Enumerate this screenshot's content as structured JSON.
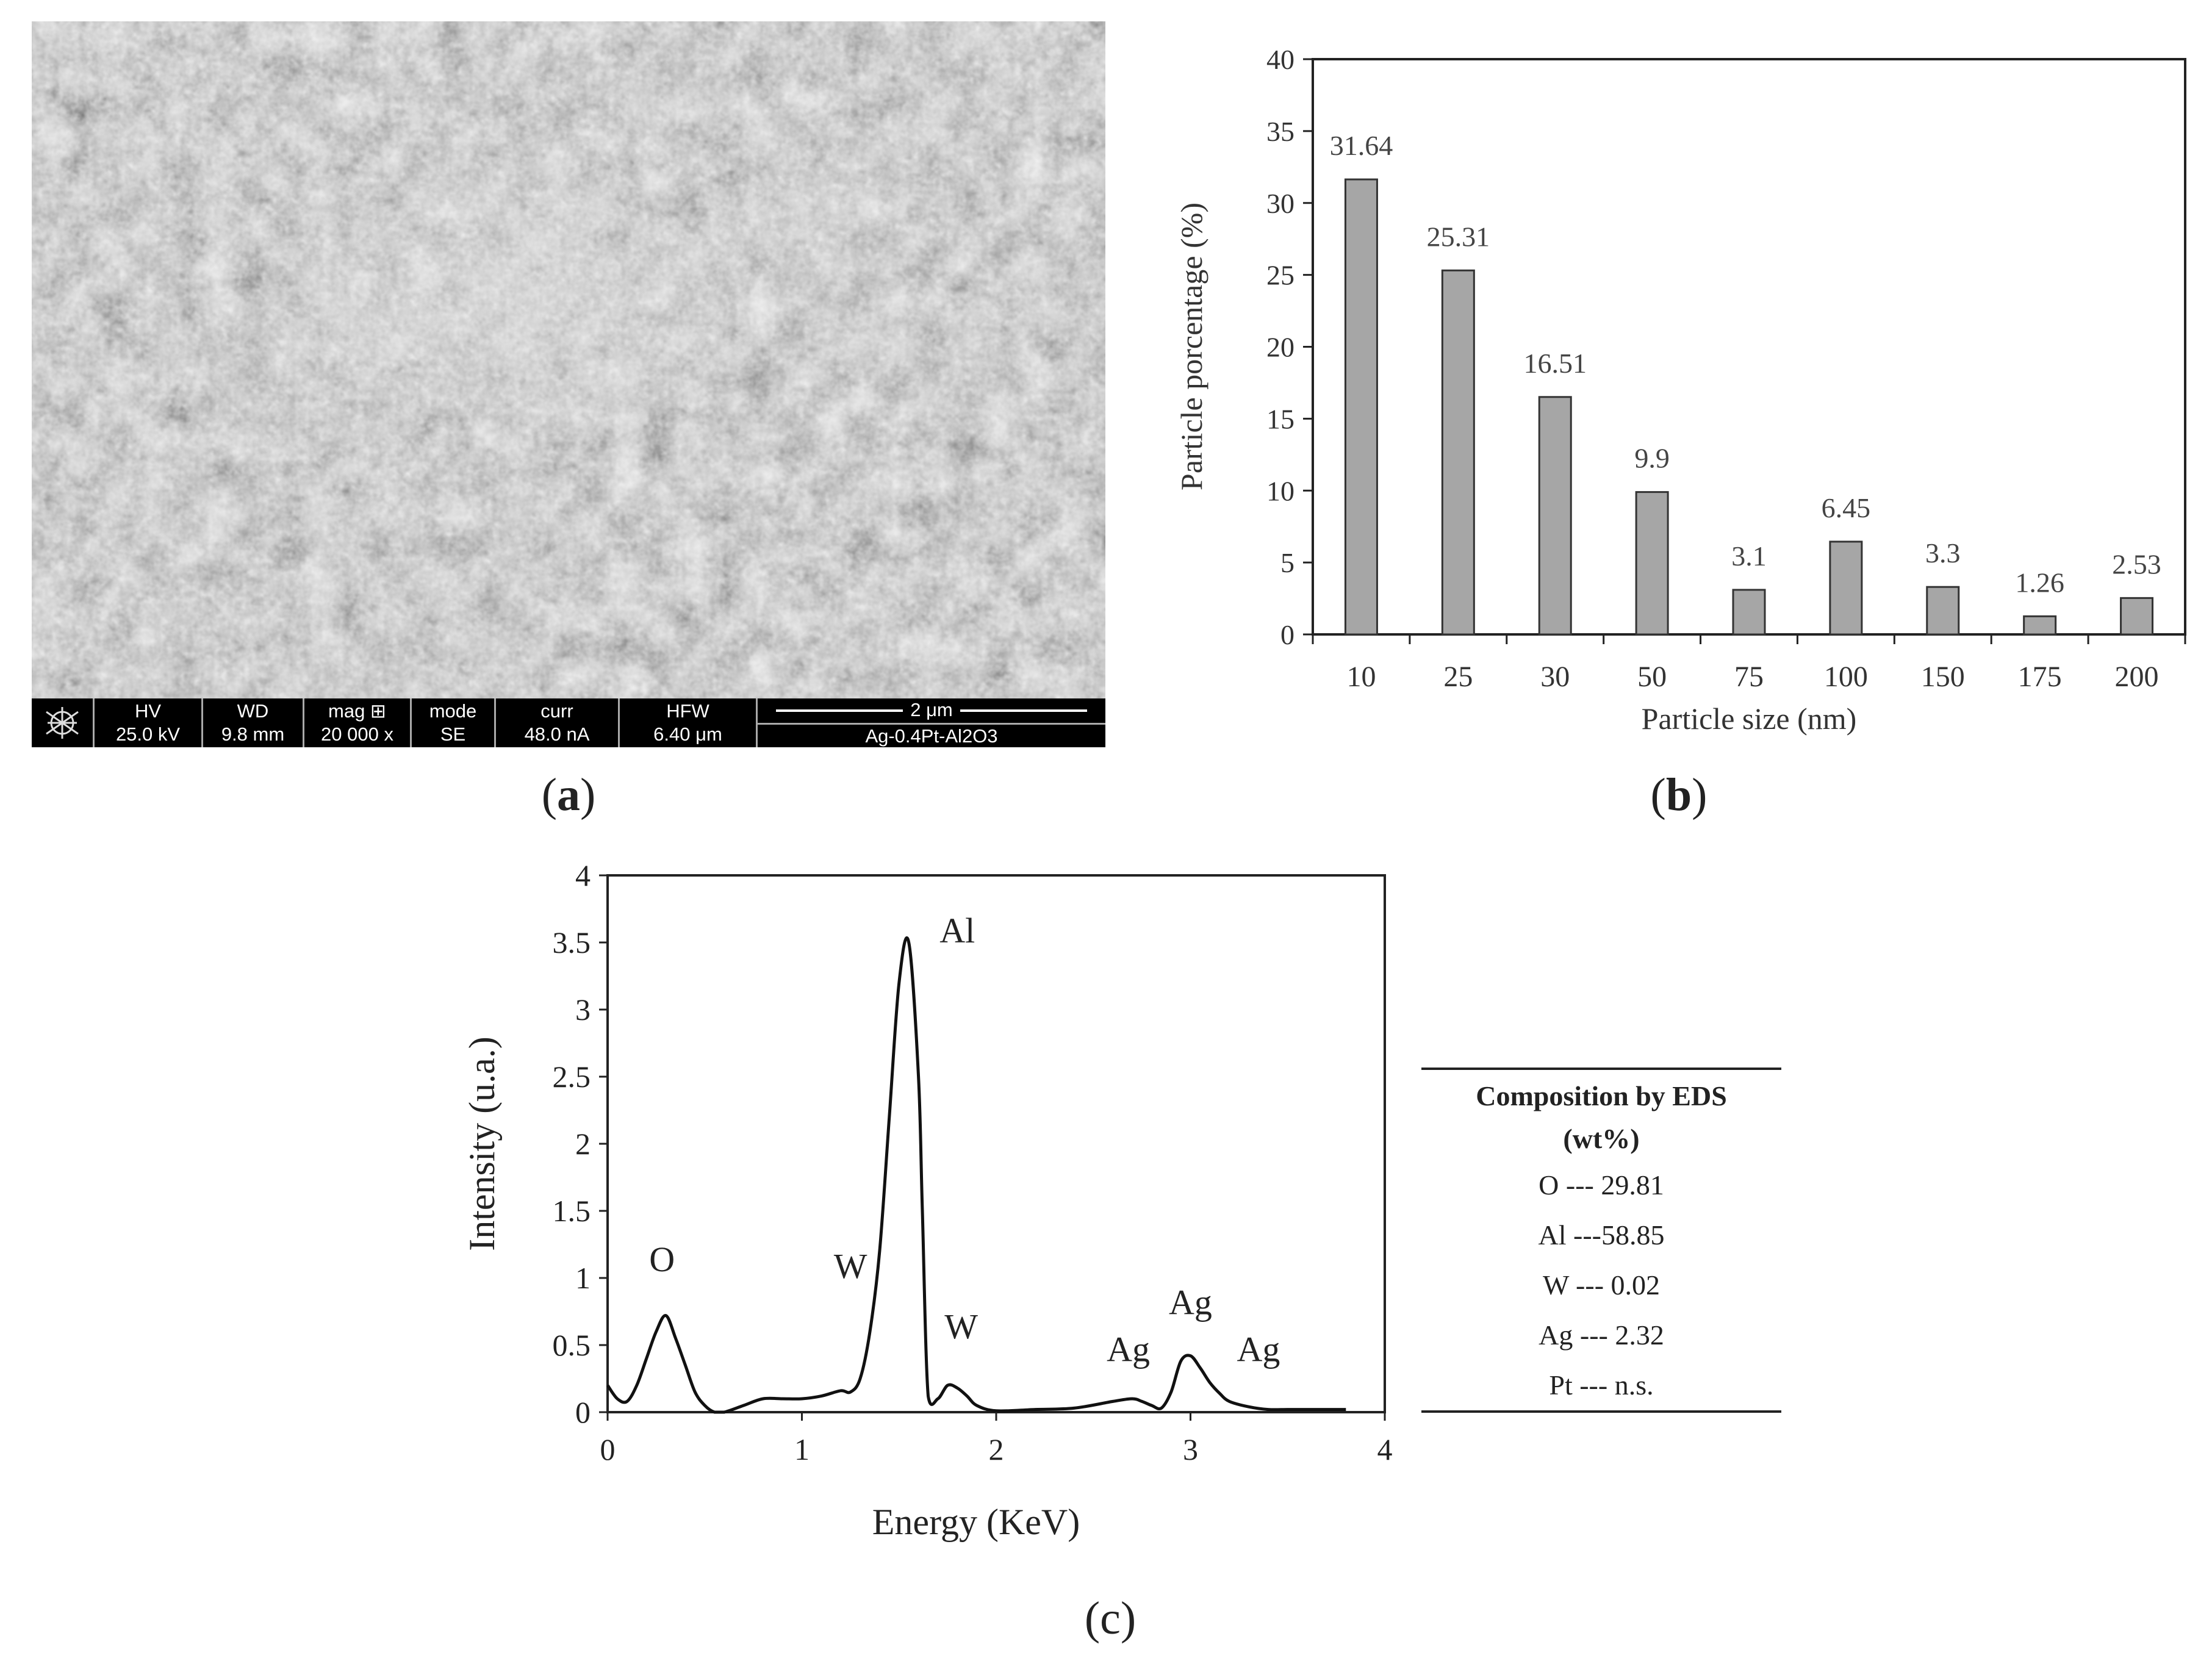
{
  "panels": {
    "a": {
      "label": "a"
    },
    "b": {
      "label": "b"
    },
    "c": {
      "label": "c"
    }
  },
  "sem": {
    "info_bar": [
      {
        "header": "HV",
        "value": "25.0 kV"
      },
      {
        "header": "WD",
        "value": "9.8 mm"
      },
      {
        "header": "mag ⊞",
        "value": "20 000 x"
      },
      {
        "header": "mode",
        "value": "SE"
      },
      {
        "header": "curr",
        "value": "48.0 nA"
      },
      {
        "header": "HFW",
        "value": "6.40 μm"
      }
    ],
    "scale_label": "2 μm",
    "sample": "Ag-0.4Pt-Al2O3"
  },
  "chart_data": [
    {
      "type": "bar",
      "xlabel": "Particle size (nm)",
      "ylabel": "Particle porcentage (%)",
      "categories": [
        "10",
        "25",
        "30",
        "50",
        "75",
        "100",
        "150",
        "175",
        "200"
      ],
      "values": [
        31.64,
        25.31,
        16.51,
        9.9,
        3.1,
        6.45,
        3.3,
        1.26,
        2.53
      ],
      "data_labels": [
        "31.64",
        "25.31",
        "16.51",
        "9.9",
        "3.1",
        "6.45",
        "3.3",
        "1.26",
        "2.53"
      ],
      "ylim": [
        0,
        40
      ],
      "yticks": [
        "0",
        "5",
        "10",
        "15",
        "20",
        "25",
        "30",
        "35",
        "40"
      ],
      "bar_color": "#a6a6a6",
      "grid": false
    },
    {
      "type": "line",
      "xlabel": "Energy (KeV)",
      "ylabel": "Intensity (u.a.)",
      "xlim": [
        0,
        4
      ],
      "ylim": [
        0,
        4
      ],
      "xticks": [
        "0",
        "1",
        "2",
        "3",
        "4"
      ],
      "yticks": [
        "0",
        "0.5",
        "1",
        "1.5",
        "2",
        "2.5",
        "3",
        "3.5",
        "4"
      ],
      "x": [
        0,
        0.05,
        0.1,
        0.15,
        0.2,
        0.25,
        0.3,
        0.35,
        0.4,
        0.45,
        0.5,
        0.55,
        0.6,
        0.7,
        0.8,
        0.9,
        1.0,
        1.1,
        1.2,
        1.25,
        1.3,
        1.35,
        1.4,
        1.45,
        1.5,
        1.55,
        1.6,
        1.62,
        1.65,
        1.7,
        1.75,
        1.8,
        1.85,
        1.9,
        2.0,
        2.2,
        2.4,
        2.6,
        2.7,
        2.75,
        2.8,
        2.85,
        2.9,
        2.95,
        3.0,
        3.05,
        3.1,
        3.15,
        3.2,
        3.3,
        3.4,
        3.5,
        3.6,
        3.7,
        3.8
      ],
      "y": [
        0.2,
        0.1,
        0.08,
        0.2,
        0.4,
        0.6,
        0.72,
        0.55,
        0.35,
        0.15,
        0.05,
        0.0,
        0.0,
        0.05,
        0.1,
        0.1,
        0.1,
        0.12,
        0.16,
        0.15,
        0.25,
        0.6,
        1.2,
        2.2,
        3.2,
        3.5,
        2.5,
        1.5,
        0.12,
        0.1,
        0.2,
        0.18,
        0.12,
        0.05,
        0.01,
        0.02,
        0.03,
        0.08,
        0.1,
        0.08,
        0.05,
        0.03,
        0.15,
        0.38,
        0.42,
        0.33,
        0.22,
        0.14,
        0.08,
        0.04,
        0.02,
        0.02,
        0.02,
        0.02,
        0.02
      ],
      "annotations": [
        {
          "text": "O",
          "x": 0.28,
          "y": 1.05
        },
        {
          "text": "W",
          "x": 1.25,
          "y": 1.0
        },
        {
          "text": "Al",
          "x": 1.8,
          "y": 3.5
        },
        {
          "text": "W",
          "x": 1.82,
          "y": 0.55
        },
        {
          "text": "Ag",
          "x": 2.68,
          "y": 0.38
        },
        {
          "text": "Ag",
          "x": 3.0,
          "y": 0.73
        },
        {
          "text": "Ag",
          "x": 3.35,
          "y": 0.38
        }
      ],
      "line_color": "#111111"
    }
  ],
  "eds_table": {
    "header_line1": "Composition by EDS",
    "header_line2": "(wt%)",
    "rows": [
      "O --- 29.81",
      "Al ---58.85",
      "W --- 0.02",
      "Ag --- 2.32",
      "Pt --- n.s."
    ]
  }
}
